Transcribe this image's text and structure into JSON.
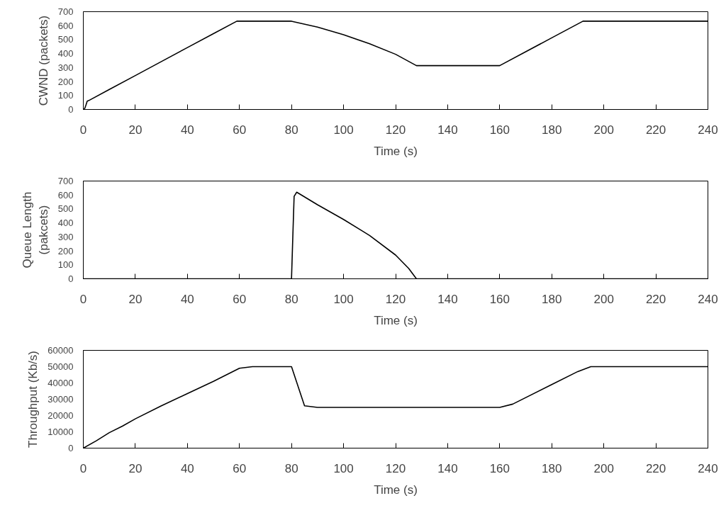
{
  "chart_data": [
    {
      "type": "line",
      "xlabel": "Time (s)",
      "ylabel": "CWND (packets)",
      "xlim": [
        0,
        240
      ],
      "xticks": [
        0,
        20,
        40,
        60,
        80,
        100,
        120,
        140,
        160,
        180,
        200,
        220,
        240
      ],
      "ylim": [
        0,
        700
      ],
      "yticks": [
        0,
        100,
        200,
        300,
        400,
        500,
        600,
        700
      ],
      "grid": false,
      "series": [
        {
          "color": "#000000",
          "x": [
            0,
            0.5,
            1,
            1.5,
            2,
            10,
            20,
            30,
            40,
            50,
            59,
            80,
            90,
            100,
            110,
            120,
            128,
            160,
            170,
            180,
            192,
            240
          ],
          "values": [
            0,
            5,
            30,
            60,
            63,
            143,
            243,
            343,
            443,
            543,
            632,
            632,
            590,
            535,
            470,
            395,
            314,
            314,
            413,
            513,
            632,
            632
          ]
        }
      ]
    },
    {
      "type": "line",
      "xlabel": "Time (s)",
      "ylabel": "Queue Length\n(pakcets)",
      "xlim": [
        0,
        240
      ],
      "xticks": [
        0,
        20,
        40,
        60,
        80,
        100,
        120,
        140,
        160,
        180,
        200,
        220,
        240
      ],
      "ylim": [
        0,
        700
      ],
      "yticks": [
        0,
        100,
        200,
        300,
        400,
        500,
        600,
        700
      ],
      "grid": false,
      "series": [
        {
          "color": "#000000",
          "x": [
            0,
            80,
            80.5,
            81,
            82,
            90,
            100,
            110,
            120,
            125,
            128,
            240
          ],
          "values": [
            0,
            0,
            300,
            590,
            620,
            530,
            425,
            310,
            170,
            75,
            0,
            0
          ]
        }
      ]
    },
    {
      "type": "line",
      "xlabel": "Time (s)",
      "ylabel": "Throughput (Kb/s)",
      "xlim": [
        0,
        240
      ],
      "xticks": [
        0,
        20,
        40,
        60,
        80,
        100,
        120,
        140,
        160,
        180,
        200,
        220,
        240
      ],
      "ylim": [
        0,
        60000
      ],
      "yticks": [
        0,
        10000,
        20000,
        30000,
        40000,
        50000,
        60000
      ],
      "grid": false,
      "series": [
        {
          "color": "#000000",
          "x": [
            0,
            5,
            10,
            15,
            20,
            30,
            40,
            50,
            55,
            60,
            65,
            80,
            85,
            90,
            160,
            165,
            180,
            190,
            195,
            240
          ],
          "values": [
            0,
            4500,
            9500,
            13500,
            18000,
            26000,
            33500,
            41000,
            45000,
            49000,
            50000,
            50000,
            26000,
            25000,
            25000,
            27000,
            39000,
            47000,
            50000,
            50000
          ]
        }
      ]
    }
  ]
}
